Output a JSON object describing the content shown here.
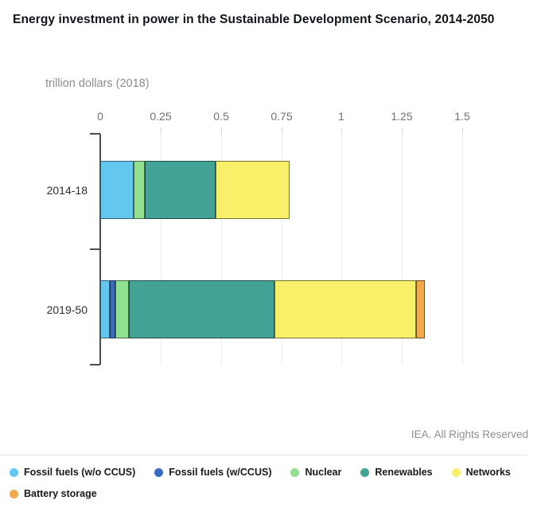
{
  "title": "Energy investment in power in the Sustainable Development Scenario, 2014-2050",
  "subtitle": "trillion dollars (2018)",
  "footer": "IEA. All Rights Reserved",
  "chart_data": {
    "type": "bar",
    "orientation": "horizontal",
    "stacked": true,
    "title": "Energy investment in power in the Sustainable Development Scenario, 2014-2050",
    "xlabel": "trillion dollars (2018)",
    "ylabel": "",
    "categories": [
      "2014-18",
      "2019-50"
    ],
    "series": [
      {
        "name": "Fossil fuels (w/o CCUS)",
        "color": "#63C7F0",
        "values": [
          0.138,
          0.038
        ]
      },
      {
        "name": "Fossil fuels (w/CCUS)",
        "color": "#3B6BBE",
        "values": [
          0,
          0.026
        ]
      },
      {
        "name": "Nuclear",
        "color": "#90E092",
        "values": [
          0.045,
          0.056
        ]
      },
      {
        "name": "Renewables",
        "color": "#42A396",
        "values": [
          0.296,
          0.603
        ]
      },
      {
        "name": "Networks",
        "color": "#F9F06A",
        "values": [
          0.305,
          0.585
        ]
      },
      {
        "name": "Battery storage",
        "color": "#F1A94E",
        "values": [
          0,
          0.036
        ]
      }
    ],
    "x_tick_labels": [
      "0",
      "0.25",
      "0.5",
      "0.75",
      "1",
      "1.25",
      "1.5"
    ],
    "x_tick_values": [
      0,
      0.25,
      0.5,
      0.75,
      1,
      1.25,
      1.5
    ],
    "xlim": [
      0,
      1.76
    ],
    "grid": true,
    "legend_position": "bottom"
  }
}
